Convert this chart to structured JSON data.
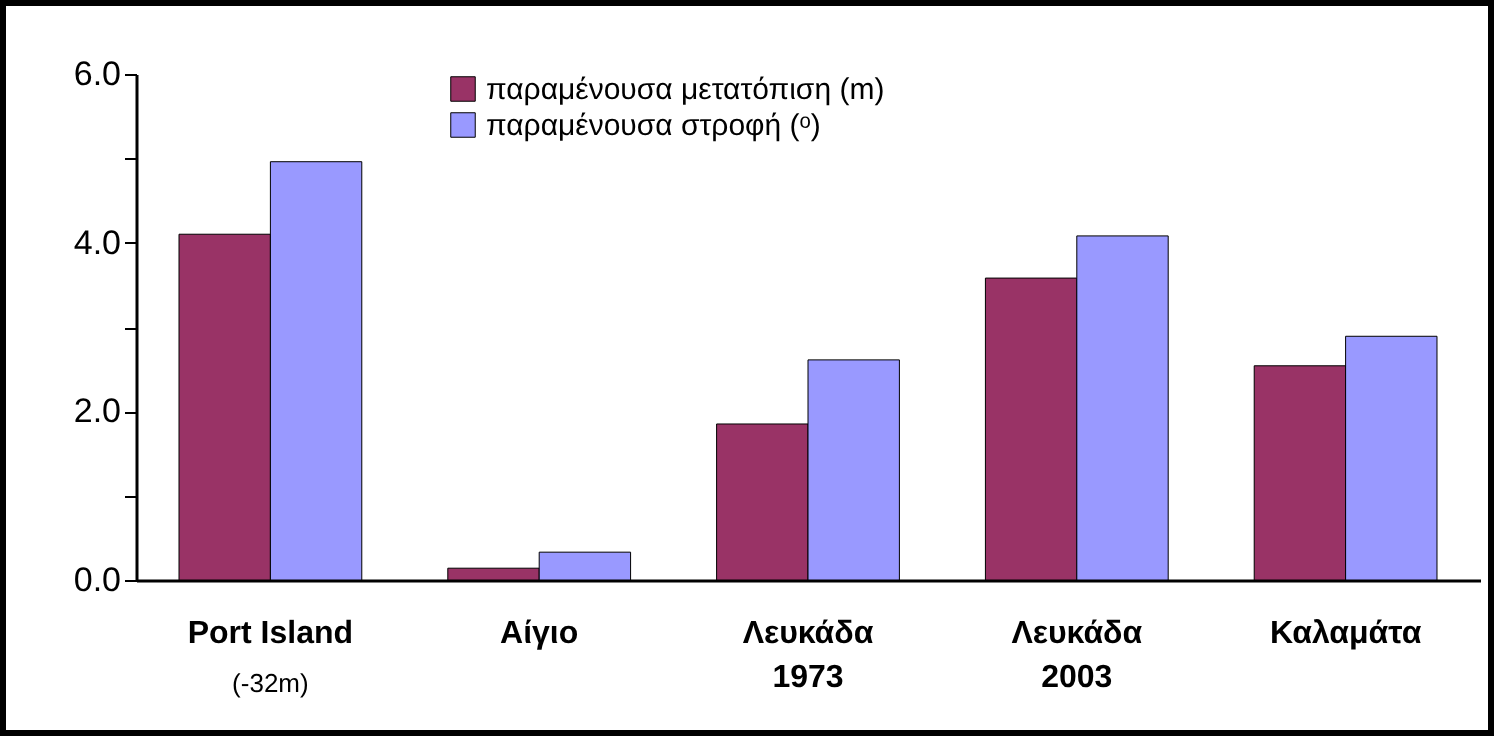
{
  "chart_data": {
    "type": "bar",
    "categories": [
      "Port Island",
      "Αίγιο",
      "Λευκάδα\n1973",
      "Λευκάδα\n2003",
      "Καλαμάτα"
    ],
    "series": [
      {
        "name": "παραμένουσα μετατόπιση (m)",
        "color": "#993366",
        "values": [
          4.1,
          0.14,
          1.85,
          3.58,
          2.54
        ]
      },
      {
        "name": "παραμένουσα στροφή (ᵒ)",
        "color": "#9999ff",
        "values": [
          4.96,
          0.33,
          2.61,
          4.08,
          2.89
        ]
      }
    ],
    "ylim": [
      0,
      6
    ],
    "yticks": [
      {
        "value": 0,
        "label": "0.0"
      },
      {
        "value": 1,
        "label": null
      },
      {
        "value": 2,
        "label": "2.0"
      },
      {
        "value": 3,
        "label": null
      },
      {
        "value": 4,
        "label": "4.0"
      },
      {
        "value": 5,
        "label": null
      },
      {
        "value": 6,
        "label": "6.0"
      }
    ],
    "annotations": [
      "(-32m)"
    ],
    "legend": "top",
    "grid": false
  }
}
